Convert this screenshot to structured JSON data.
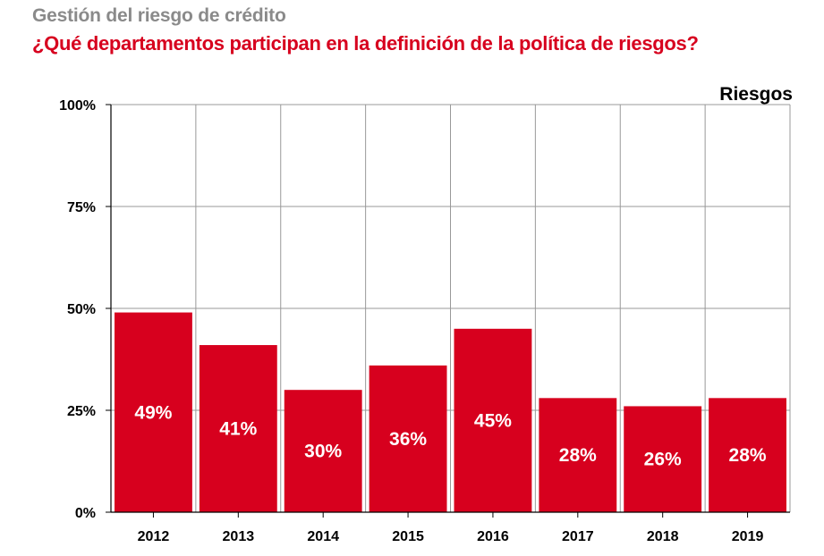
{
  "header": {
    "supertitle": "Gestión del riesgo de crédito",
    "title": "¿Qué departamentos participan en la definición de la política de riesgos?"
  },
  "chart_data": {
    "type": "bar",
    "categories": [
      "2012",
      "2013",
      "2014",
      "2015",
      "2016",
      "2017",
      "2018",
      "2019"
    ],
    "series": [
      {
        "name": "Riesgos",
        "values": [
          49,
          41,
          30,
          36,
          45,
          28,
          26,
          28
        ]
      }
    ],
    "data_labels": [
      "49%",
      "41%",
      "30%",
      "36%",
      "45%",
      "28%",
      "26%",
      "28%"
    ],
    "ylim": [
      0,
      100
    ],
    "yticks": [
      0,
      25,
      50,
      75,
      100
    ],
    "ytick_labels": [
      "0%",
      "25%",
      "50%",
      "75%",
      "100%"
    ],
    "legend_label": "Riesgos",
    "legend_position": "top-right",
    "grid": true,
    "colors": {
      "bar": "#d7001e",
      "grid": "#999999",
      "title": "#d7001e",
      "supertitle": "#8a8a8a"
    }
  }
}
